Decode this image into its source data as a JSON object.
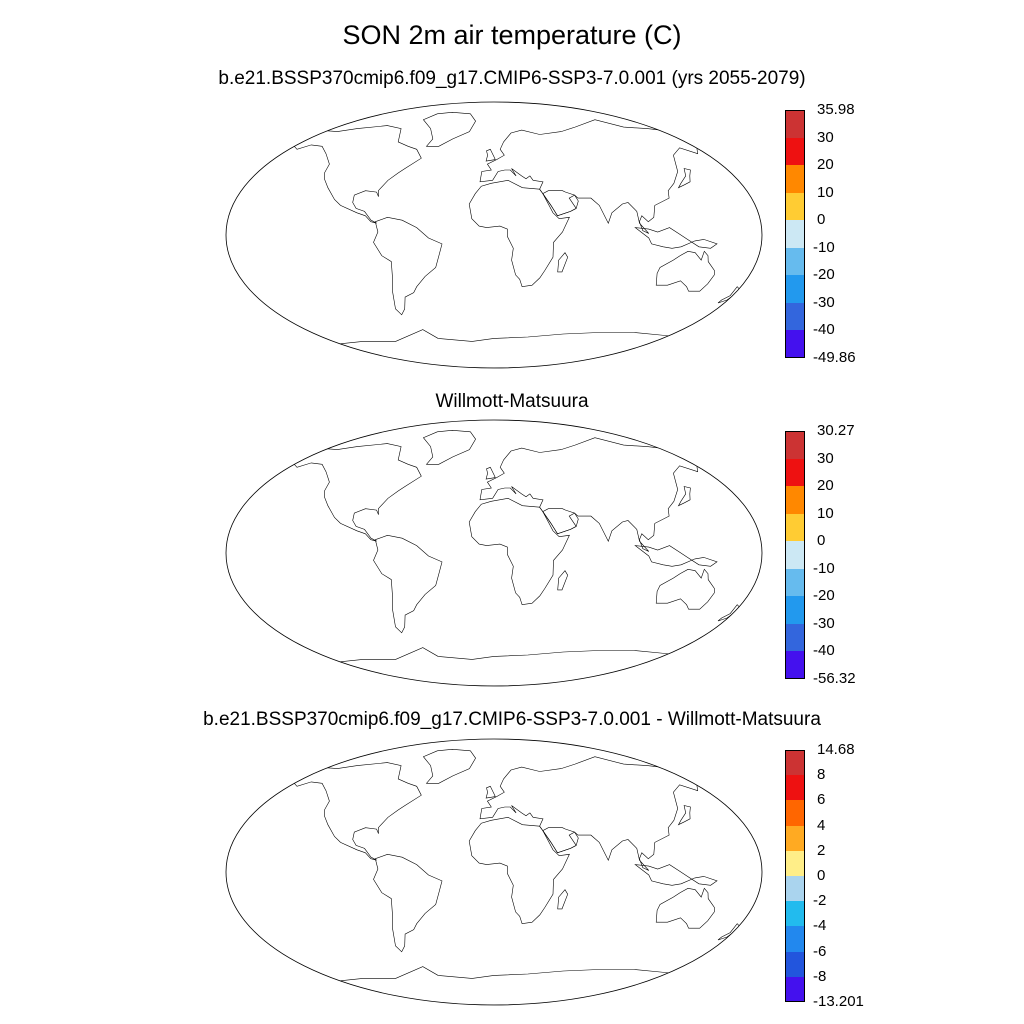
{
  "figure_title": "SON 2m air temperature (C)",
  "panels": [
    {
      "title": "b.e21.BSSP370cmip6.f09_g17.CMIP6-SSP3-7.0.001 (yrs 2055-2079)",
      "colorbar": {
        "labels": [
          "35.98",
          "30",
          "20",
          "10",
          "0",
          "-10",
          "-20",
          "-30",
          "-40",
          "-49.86"
        ],
        "colors": [
          "#cc3333",
          "#ee1111",
          "#ff8800",
          "#ffcc33",
          "#cce8f4",
          "#66bbee",
          "#2299ee",
          "#3366dd",
          "#4411ee"
        ]
      },
      "field": "model_absolute"
    },
    {
      "title": "Willmott-Matsuura",
      "colorbar": {
        "labels": [
          "30.27",
          "30",
          "20",
          "10",
          "0",
          "-10",
          "-20",
          "-30",
          "-40",
          "-56.32"
        ],
        "colors": [
          "#cc3333",
          "#ee1111",
          "#ff8800",
          "#ffcc33",
          "#cce8f4",
          "#66bbee",
          "#2299ee",
          "#3366dd",
          "#4411ee"
        ]
      },
      "field": "obs_absolute"
    },
    {
      "title": "b.e21.BSSP370cmip6.f09_g17.CMIP6-SSP3-7.0.001 - Willmott-Matsuura",
      "colorbar": {
        "labels": [
          "14.68",
          "8",
          "6",
          "4",
          "2",
          "0",
          "-2",
          "-4",
          "-6",
          "-8",
          "-13.201"
        ],
        "colors": [
          "#cc3333",
          "#ee1111",
          "#ff6600",
          "#ffaa22",
          "#ffee88",
          "#aad4ee",
          "#22bbee",
          "#2288ee",
          "#2255dd",
          "#4411ee"
        ]
      },
      "field": "difference"
    }
  ]
}
